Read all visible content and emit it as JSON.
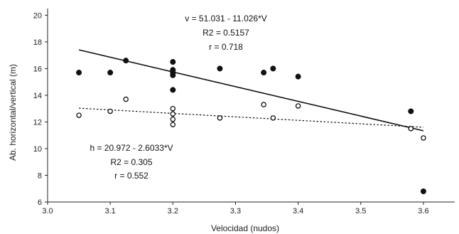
{
  "chart_data": {
    "type": "scatter",
    "title": "",
    "xlabel": "Velocidad (nudos)",
    "ylabel": "Ab. horizontal/vertical (m)",
    "xlim": [
      3.0,
      3.65
    ],
    "ylim": [
      6,
      20.5
    ],
    "xticks": [
      "3.0",
      "3.1",
      "3.2",
      "3.3",
      "3.4",
      "3.5",
      "3.6"
    ],
    "yticks": [
      "6",
      "8",
      "10",
      "12",
      "14",
      "16",
      "18",
      "20"
    ],
    "grid": false,
    "series": [
      {
        "marker": "filled-circle",
        "color": "#111111",
        "points": [
          [
            3.05,
            15.7
          ],
          [
            3.1,
            15.7
          ],
          [
            3.125,
            16.6
          ],
          [
            3.2,
            16.5
          ],
          [
            3.2,
            15.9
          ],
          [
            3.2,
            15.7
          ],
          [
            3.2,
            15.5
          ],
          [
            3.2,
            14.4
          ],
          [
            3.275,
            16.0
          ],
          [
            3.345,
            15.7
          ],
          [
            3.36,
            16.0
          ],
          [
            3.4,
            15.4
          ],
          [
            3.58,
            12.8
          ],
          [
            3.6,
            6.8
          ]
        ],
        "fit": {
          "style": "solid",
          "intercept": 51.031,
          "slope": -11.026,
          "x_range": [
            3.05,
            3.6
          ]
        }
      },
      {
        "marker": "open-circle",
        "color": "#111111",
        "points": [
          [
            3.05,
            12.5
          ],
          [
            3.1,
            12.8
          ],
          [
            3.125,
            13.7
          ],
          [
            3.2,
            13.0
          ],
          [
            3.2,
            12.6
          ],
          [
            3.2,
            12.2
          ],
          [
            3.2,
            11.8
          ],
          [
            3.275,
            12.3
          ],
          [
            3.345,
            13.3
          ],
          [
            3.36,
            12.3
          ],
          [
            3.4,
            13.2
          ],
          [
            3.58,
            11.5
          ],
          [
            3.6,
            10.8
          ]
        ],
        "fit": {
          "style": "dashed",
          "intercept": 20.972,
          "slope": -2.6033,
          "x_range": [
            3.05,
            3.6
          ]
        }
      }
    ],
    "annotations": [
      {
        "lines": [
          "v = 51.031 - 11.026*V",
          "R2 = 0.5157",
          "r = 0.718"
        ]
      },
      {
        "lines": [
          "h = 20.972 - 2.6033*V",
          "R2 = 0.305",
          "r = 0.552"
        ]
      }
    ]
  }
}
